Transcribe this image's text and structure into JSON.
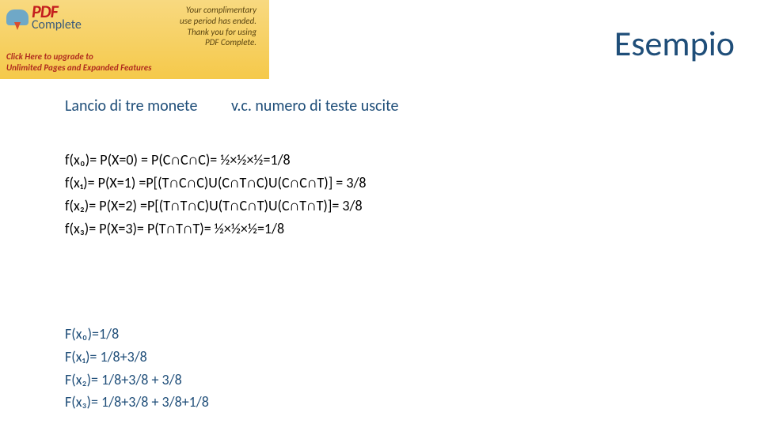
{
  "banner": {
    "pdf_word": "PDF",
    "complete_word": "Complete",
    "msg_line1": "Your complimentary",
    "msg_line2": "use period has ended.",
    "msg_line3": "Thank you for using",
    "msg_line4": "PDF Complete.",
    "bottom_line1": "Click Here to upgrade to",
    "bottom_line2": "Unlimited Pages and Expanded Features"
  },
  "title": "Esempio",
  "subtitle": {
    "left": "Lancio di tre monete",
    "right": "v.c. numero di teste uscite"
  },
  "formulas": {
    "f0": "f(x₀)= P(X=0) = P(C∩C∩C)= ½×½×½=1/8",
    "f1": "f(x₁)= P(X=1) =P[(T∩C∩C)U(C∩T∩C)U(C∩C∩T)] = 3/8",
    "f2": "f(x₂)= P(X=2) =P[(T∩T∩C)U(T∩C∩T)U(C∩T∩T)]= 3/8",
    "f3": "f(x₃)= P(X=3)= P(T∩T∩T)= ½×½×½=1/8"
  },
  "cdf": {
    "F0": "F(x₀)=1/8",
    "F1": "F(x₁)= 1/8+3/8",
    "F2": "F(x₂)= 1/8+3/8 + 3/8",
    "F3": "F(x₃)= 1/8+3/8 + 3/8+1/8"
  }
}
